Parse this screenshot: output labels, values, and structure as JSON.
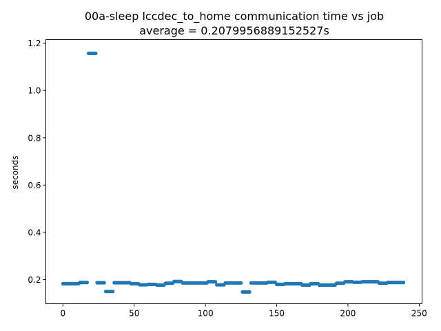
{
  "chart_data": {
    "type": "scatter",
    "title": "00a-sleep lccdec_to_home communication time vs job",
    "subtitle": "average = 0.2079956889152527s",
    "xlabel": "",
    "ylabel": "seconds",
    "xlim": [
      -12,
      252
    ],
    "ylim": [
      0.098,
      1.215
    ],
    "xticks": [
      0,
      50,
      100,
      150,
      200,
      250
    ],
    "yticks": [
      0.2,
      0.4,
      0.6,
      0.8,
      1.0,
      1.2
    ],
    "xtick_labels": [
      "0",
      "50",
      "100",
      "150",
      "200",
      "250"
    ],
    "ytick_labels": [
      "0.2",
      "0.4",
      "0.6",
      "0.8",
      "1.0",
      "1.2"
    ],
    "grid": false,
    "legend": "none",
    "series": [
      {
        "color": "#1f77b4",
        "segments": [
          {
            "x_start": 0,
            "x_end": 11,
            "y": 0.183
          },
          {
            "x_start": 12,
            "x_end": 17,
            "y": 0.188
          },
          {
            "x_start": 18,
            "x_end": 23,
            "y": 1.157
          },
          {
            "x_start": 24,
            "x_end": 29,
            "y": 0.187
          },
          {
            "x_start": 30,
            "x_end": 35,
            "y": 0.15
          },
          {
            "x_start": 36,
            "x_end": 47,
            "y": 0.187
          },
          {
            "x_start": 48,
            "x_end": 53,
            "y": 0.183
          },
          {
            "x_start": 54,
            "x_end": 59,
            "y": 0.178
          },
          {
            "x_start": 60,
            "x_end": 65,
            "y": 0.18
          },
          {
            "x_start": 66,
            "x_end": 71,
            "y": 0.177
          },
          {
            "x_start": 72,
            "x_end": 77,
            "y": 0.185
          },
          {
            "x_start": 78,
            "x_end": 83,
            "y": 0.192
          },
          {
            "x_start": 84,
            "x_end": 89,
            "y": 0.186
          },
          {
            "x_start": 90,
            "x_end": 101,
            "y": 0.186
          },
          {
            "x_start": 102,
            "x_end": 107,
            "y": 0.191
          },
          {
            "x_start": 108,
            "x_end": 113,
            "y": 0.178
          },
          {
            "x_start": 114,
            "x_end": 125,
            "y": 0.186
          },
          {
            "x_start": 126,
            "x_end": 131,
            "y": 0.148
          },
          {
            "x_start": 132,
            "x_end": 143,
            "y": 0.186
          },
          {
            "x_start": 144,
            "x_end": 149,
            "y": 0.189
          },
          {
            "x_start": 150,
            "x_end": 155,
            "y": 0.18
          },
          {
            "x_start": 156,
            "x_end": 167,
            "y": 0.183
          },
          {
            "x_start": 168,
            "x_end": 173,
            "y": 0.177
          },
          {
            "x_start": 174,
            "x_end": 179,
            "y": 0.183
          },
          {
            "x_start": 180,
            "x_end": 191,
            "y": 0.177
          },
          {
            "x_start": 192,
            "x_end": 197,
            "y": 0.185
          },
          {
            "x_start": 198,
            "x_end": 203,
            "y": 0.191
          },
          {
            "x_start": 204,
            "x_end": 209,
            "y": 0.189
          },
          {
            "x_start": 210,
            "x_end": 221,
            "y": 0.191
          },
          {
            "x_start": 222,
            "x_end": 227,
            "y": 0.185
          },
          {
            "x_start": 228,
            "x_end": 239,
            "y": 0.188
          }
        ]
      }
    ]
  }
}
